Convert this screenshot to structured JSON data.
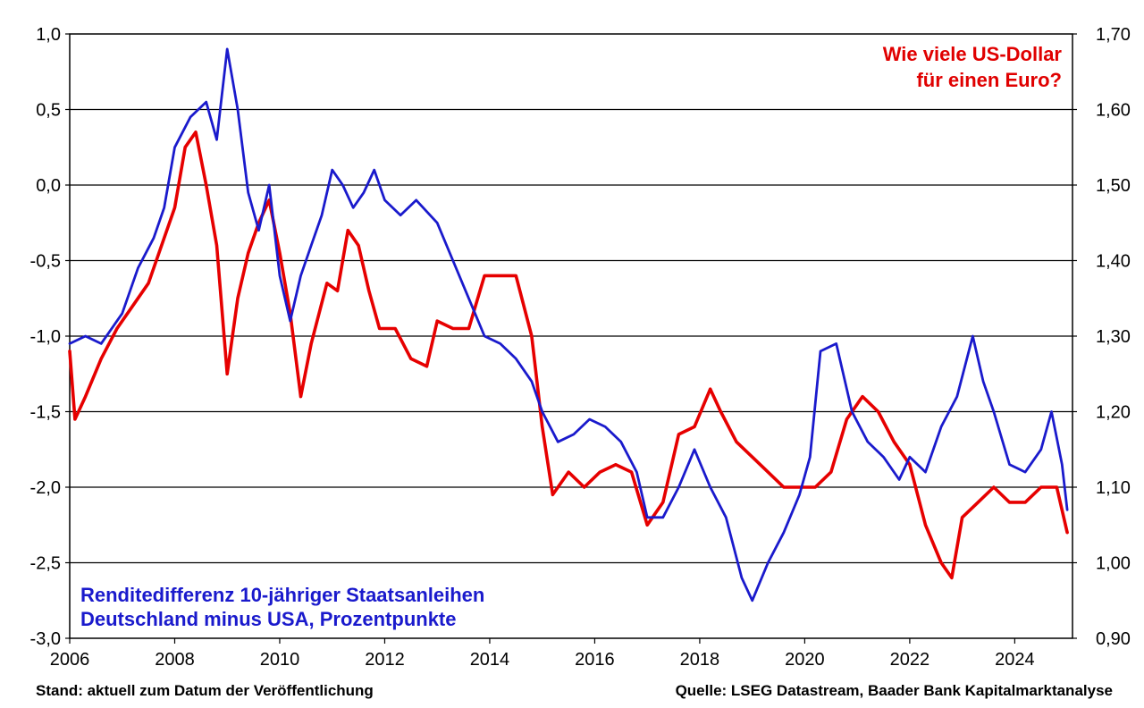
{
  "chart_data": {
    "type": "line",
    "footer_left": "Stand: aktuell zum Datum der Veröffentlichung",
    "footer_right": "Quelle: LSEG Datastream, Baader Bank Kapitalmarktanalyse",
    "x_ticks": [
      "2006",
      "2008",
      "2010",
      "2012",
      "2014",
      "2016",
      "2018",
      "2020",
      "2022",
      "2024"
    ],
    "xlim": [
      2006,
      2025.1
    ],
    "y_left": {
      "ylim": [
        -3.0,
        1.0
      ],
      "ticks": [
        "1,0",
        "0,5",
        "0,0",
        "-0,5",
        "-1,0",
        "-1,5",
        "-2,0",
        "-2,5",
        "-3,0"
      ]
    },
    "y_right": {
      "ylim": [
        0.9,
        1.7
      ],
      "ticks": [
        "1,70",
        "1,60",
        "1,50",
        "1,40",
        "1,30",
        "1,20",
        "1,10",
        "1,00",
        "0,90"
      ]
    },
    "grid": true,
    "series": [
      {
        "name_lines": [
          "Renditedifferenz 10-jähriger Staatsanleihen",
          "Deutschland minus USA, Prozentpunkte"
        ],
        "axis": "left",
        "color": "#1a1acc",
        "x": [
          2006.0,
          2006.3,
          2006.6,
          2007.0,
          2007.3,
          2007.6,
          2007.8,
          2008.0,
          2008.3,
          2008.6,
          2008.8,
          2009.0,
          2009.2,
          2009.4,
          2009.6,
          2009.8,
          2010.0,
          2010.2,
          2010.4,
          2010.6,
          2010.8,
          2011.0,
          2011.2,
          2011.4,
          2011.6,
          2011.8,
          2012.0,
          2012.3,
          2012.6,
          2013.0,
          2013.3,
          2013.6,
          2013.9,
          2014.2,
          2014.5,
          2014.8,
          2015.0,
          2015.3,
          2015.6,
          2015.9,
          2016.2,
          2016.5,
          2016.8,
          2017.0,
          2017.3,
          2017.6,
          2017.9,
          2018.2,
          2018.5,
          2018.8,
          2019.0,
          2019.3,
          2019.6,
          2019.9,
          2020.1,
          2020.3,
          2020.6,
          2020.9,
          2021.2,
          2021.5,
          2021.8,
          2022.0,
          2022.3,
          2022.6,
          2022.9,
          2023.2,
          2023.4,
          2023.6,
          2023.9,
          2024.2,
          2024.5,
          2024.7,
          2024.9,
          2025.0
        ],
        "y": [
          -1.05,
          -1.0,
          -1.05,
          -0.85,
          -0.55,
          -0.35,
          -0.15,
          0.25,
          0.45,
          0.55,
          0.3,
          0.9,
          0.5,
          -0.05,
          -0.3,
          0.0,
          -0.6,
          -0.9,
          -0.6,
          -0.4,
          -0.2,
          0.1,
          0.0,
          -0.15,
          -0.05,
          0.1,
          -0.1,
          -0.2,
          -0.1,
          -0.25,
          -0.5,
          -0.75,
          -1.0,
          -1.05,
          -1.15,
          -1.3,
          -1.5,
          -1.7,
          -1.65,
          -1.55,
          -1.6,
          -1.7,
          -1.9,
          -2.2,
          -2.2,
          -2.0,
          -1.75,
          -2.0,
          -2.2,
          -2.6,
          -2.75,
          -2.5,
          -2.3,
          -2.05,
          -1.8,
          -1.1,
          -1.05,
          -1.5,
          -1.7,
          -1.8,
          -1.95,
          -1.8,
          -1.9,
          -1.6,
          -1.4,
          -1.0,
          -1.3,
          -1.5,
          -1.85,
          -1.9,
          -1.75,
          -1.5,
          -1.85,
          -2.15
        ]
      },
      {
        "name_lines": [
          "Wie viele US-Dollar",
          "für einen Euro?"
        ],
        "axis": "right",
        "color": "#e60000",
        "x": [
          2006.0,
          2006.1,
          2006.3,
          2006.6,
          2006.9,
          2007.2,
          2007.5,
          2007.8,
          2008.0,
          2008.2,
          2008.4,
          2008.6,
          2008.8,
          2009.0,
          2009.2,
          2009.4,
          2009.6,
          2009.8,
          2010.0,
          2010.2,
          2010.4,
          2010.6,
          2010.9,
          2011.1,
          2011.3,
          2011.5,
          2011.7,
          2011.9,
          2012.2,
          2012.5,
          2012.8,
          2013.0,
          2013.3,
          2013.6,
          2013.9,
          2014.2,
          2014.5,
          2014.8,
          2015.0,
          2015.2,
          2015.5,
          2015.8,
          2016.1,
          2016.4,
          2016.7,
          2017.0,
          2017.3,
          2017.6,
          2017.9,
          2018.2,
          2018.4,
          2018.7,
          2019.0,
          2019.3,
          2019.6,
          2019.9,
          2020.2,
          2020.5,
          2020.8,
          2021.1,
          2021.4,
          2021.7,
          2022.0,
          2022.3,
          2022.6,
          2022.8,
          2023.0,
          2023.3,
          2023.6,
          2023.9,
          2024.2,
          2024.5,
          2024.8,
          2025.0
        ],
        "y": [
          1.28,
          1.19,
          1.22,
          1.27,
          1.31,
          1.34,
          1.37,
          1.43,
          1.47,
          1.55,
          1.57,
          1.5,
          1.42,
          1.25,
          1.35,
          1.41,
          1.45,
          1.48,
          1.41,
          1.33,
          1.22,
          1.29,
          1.37,
          1.36,
          1.44,
          1.42,
          1.36,
          1.31,
          1.31,
          1.27,
          1.26,
          1.32,
          1.31,
          1.31,
          1.38,
          1.38,
          1.38,
          1.3,
          1.18,
          1.09,
          1.12,
          1.1,
          1.12,
          1.13,
          1.12,
          1.05,
          1.08,
          1.17,
          1.18,
          1.23,
          1.2,
          1.16,
          1.14,
          1.12,
          1.1,
          1.1,
          1.1,
          1.12,
          1.19,
          1.22,
          1.2,
          1.16,
          1.13,
          1.05,
          1.0,
          0.98,
          1.06,
          1.08,
          1.1,
          1.08,
          1.08,
          1.1,
          1.1,
          1.04
        ]
      }
    ]
  }
}
